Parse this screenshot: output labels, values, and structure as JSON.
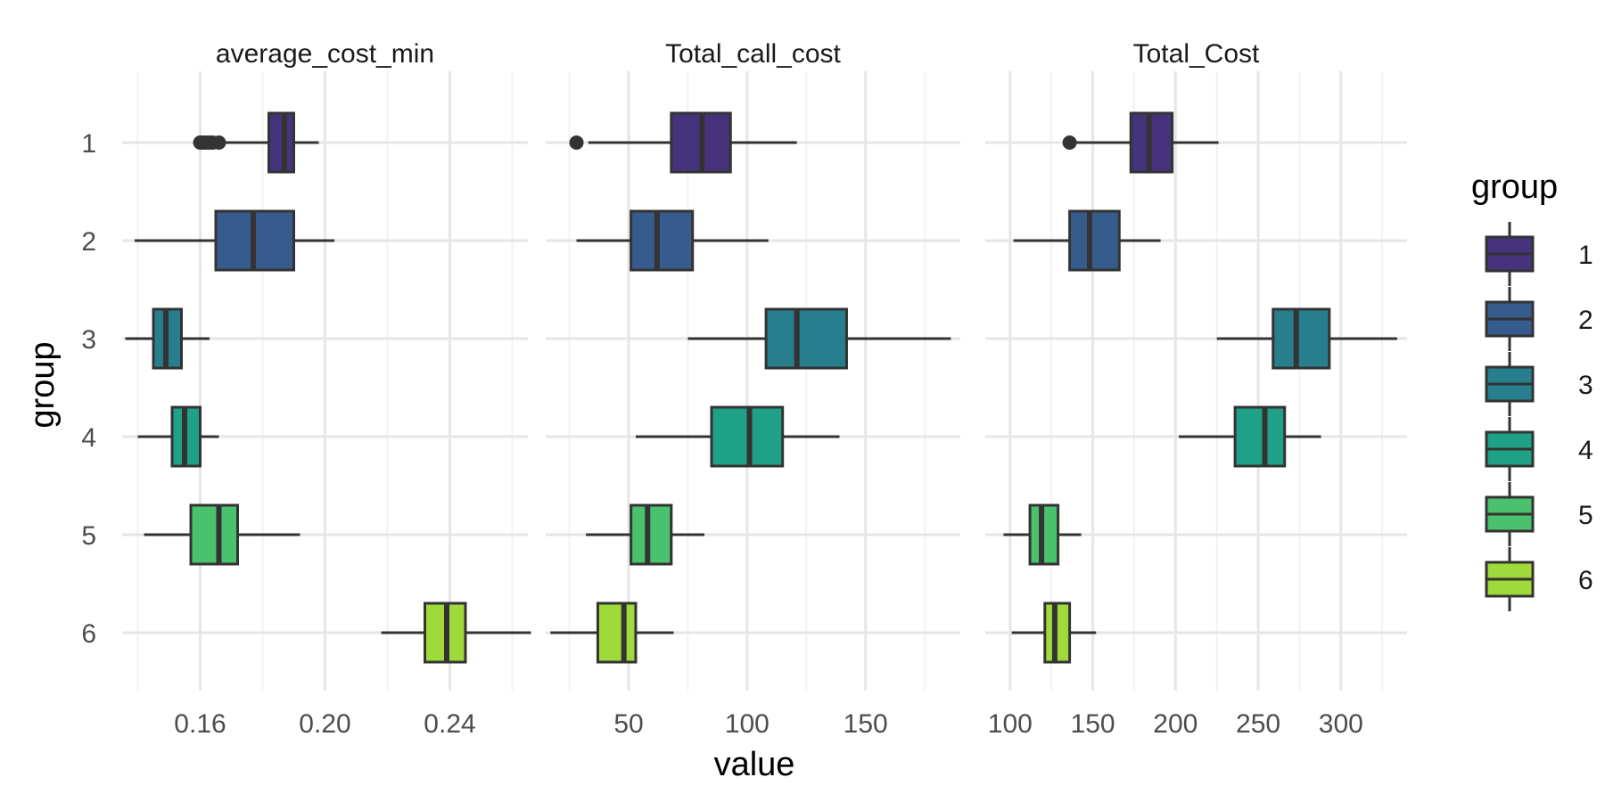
{
  "chart_data": {
    "type": "boxplot",
    "orientation": "horizontal",
    "xlabel": "value",
    "ylabel": "group",
    "groups": [
      "1",
      "2",
      "3",
      "4",
      "5",
      "6"
    ],
    "grid": true,
    "legend": {
      "title": "group",
      "placement": "right",
      "items": [
        "1",
        "2",
        "3",
        "4",
        "5",
        "6"
      ]
    },
    "colors": [
      "#46337E",
      "#365C8D",
      "#277F8E",
      "#1FA187",
      "#4AC16D",
      "#9FDA3A"
    ],
    "outline_color": "#333333",
    "panels": [
      {
        "title": "average_cost_min",
        "xlim": [
          0.135,
          0.265
        ],
        "ticks": [
          0.16,
          0.2,
          0.24
        ],
        "tick_labels": [
          "0.16",
          "0.20",
          "0.24"
        ],
        "minor_ticks": [
          0.14,
          0.18,
          0.22,
          0.26
        ],
        "boxes": [
          {
            "group": "1",
            "whisker_low": 0.163,
            "q1": 0.182,
            "median": 0.187,
            "q3": 0.19,
            "whisker_high": 0.198,
            "outliers": [
              0.16,
              0.161,
              0.162,
              0.163,
              0.164,
              0.166
            ]
          },
          {
            "group": "2",
            "whisker_low": 0.139,
            "q1": 0.165,
            "median": 0.177,
            "q3": 0.19,
            "whisker_high": 0.203,
            "outliers": []
          },
          {
            "group": "3",
            "whisker_low": 0.136,
            "q1": 0.145,
            "median": 0.149,
            "q3": 0.154,
            "whisker_high": 0.163,
            "outliers": []
          },
          {
            "group": "4",
            "whisker_low": 0.14,
            "q1": 0.151,
            "median": 0.155,
            "q3": 0.16,
            "whisker_high": 0.166,
            "outliers": []
          },
          {
            "group": "5",
            "whisker_low": 0.142,
            "q1": 0.157,
            "median": 0.166,
            "q3": 0.172,
            "whisker_high": 0.192,
            "outliers": []
          },
          {
            "group": "6",
            "whisker_low": 0.218,
            "q1": 0.232,
            "median": 0.239,
            "q3": 0.245,
            "whisker_high": 0.266,
            "outliers": []
          }
        ]
      },
      {
        "title": "Total_call_cost",
        "xlim": [
          15,
          190
        ],
        "ticks": [
          50,
          100,
          150
        ],
        "tick_labels": [
          "50",
          "100",
          "150"
        ],
        "minor_ticks": [
          25,
          75,
          125,
          175
        ],
        "boxes": [
          {
            "group": "1",
            "whisker_low": 33,
            "q1": 68,
            "median": 81,
            "q3": 93,
            "whisker_high": 121,
            "outliers": [
              28
            ]
          },
          {
            "group": "2",
            "whisker_low": 28,
            "q1": 51,
            "median": 62,
            "q3": 77,
            "whisker_high": 109,
            "outliers": []
          },
          {
            "group": "3",
            "whisker_low": 75,
            "q1": 108,
            "median": 121,
            "q3": 142,
            "whisker_high": 186,
            "outliers": []
          },
          {
            "group": "4",
            "whisker_low": 53,
            "q1": 85,
            "median": 101,
            "q3": 115,
            "whisker_high": 139,
            "outliers": []
          },
          {
            "group": "5",
            "whisker_low": 32,
            "q1": 51,
            "median": 58,
            "q3": 68,
            "whisker_high": 82,
            "outliers": []
          },
          {
            "group": "6",
            "whisker_low": 17,
            "q1": 37,
            "median": 48,
            "q3": 53,
            "whisker_high": 69,
            "outliers": []
          }
        ]
      },
      {
        "title": "Total_Cost",
        "xlim": [
          85,
          340
        ],
        "ticks": [
          100,
          150,
          200,
          250,
          300
        ],
        "tick_labels": [
          "100",
          "150",
          "200",
          "250",
          "300"
        ],
        "minor_ticks": [
          125,
          175,
          225,
          275,
          325
        ],
        "boxes": [
          {
            "group": "1",
            "whisker_low": 140,
            "q1": 173,
            "median": 184,
            "q3": 198,
            "whisker_high": 226,
            "outliers": [
              136
            ]
          },
          {
            "group": "2",
            "whisker_low": 102,
            "q1": 136,
            "median": 148,
            "q3": 166,
            "whisker_high": 191,
            "outliers": []
          },
          {
            "group": "3",
            "whisker_low": 225,
            "q1": 259,
            "median": 273,
            "q3": 293,
            "whisker_high": 334,
            "outliers": []
          },
          {
            "group": "4",
            "whisker_low": 202,
            "q1": 236,
            "median": 254,
            "q3": 266,
            "whisker_high": 288,
            "outliers": []
          },
          {
            "group": "5",
            "whisker_low": 96,
            "q1": 112,
            "median": 119,
            "q3": 129,
            "whisker_high": 143,
            "outliers": []
          },
          {
            "group": "6",
            "whisker_low": 101,
            "q1": 121,
            "median": 127,
            "q3": 136,
            "whisker_high": 152,
            "outliers": []
          }
        ]
      }
    ]
  }
}
